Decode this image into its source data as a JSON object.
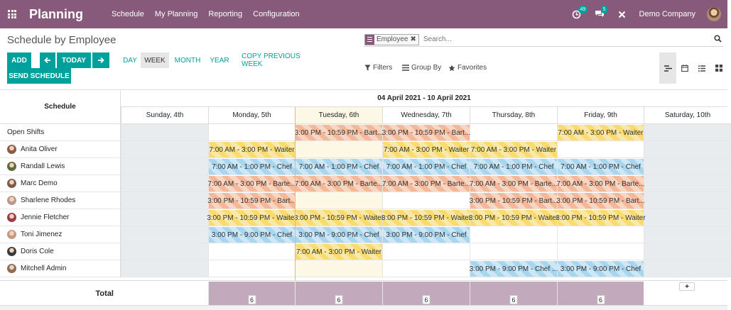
{
  "navbar": {
    "app_title": "Planning",
    "menu": [
      "Schedule",
      "My Planning",
      "Reporting",
      "Configuration"
    ],
    "activity_badge": "49",
    "messages_badge": "5",
    "company": "Demo Company"
  },
  "control_panel": {
    "title": "Schedule by Employee",
    "facet_label": "Employee",
    "search_placeholder": "Search...",
    "buttons": {
      "add": "ADD",
      "today": "TODAY",
      "send": "SEND SCHEDULE"
    },
    "scales": [
      "DAY",
      "WEEK",
      "MONTH",
      "YEAR"
    ],
    "active_scale": "WEEK",
    "copy_previous": "COPY PREVIOUS WEEK",
    "filters": "Filters",
    "group_by": "Group By",
    "favorites": "Favorites"
  },
  "gantt": {
    "header_title": "Schedule",
    "range": "04 April 2021 - 10 April 2021",
    "days": [
      "Sunday, 4th",
      "Monday, 5th",
      "Tuesday, 6th",
      "Wednesday, 7th",
      "Thursday, 8th",
      "Friday, 9th",
      "Saturday, 10th"
    ],
    "rows": [
      {
        "name": "Open Shifts",
        "avatar": "",
        "shifts": [
          {
            "day": 2,
            "span": 1,
            "label": "3:00 PM - 10:59 PM - Bart...",
            "role": "bartender"
          },
          {
            "day": 3,
            "span": 1,
            "label": "3:00 PM - 10:59 PM - Bart...",
            "role": "bartender"
          },
          {
            "day": 5,
            "span": 1,
            "label": "7:00 AM - 3:00 PM - Waiter",
            "role": "waiter"
          }
        ]
      },
      {
        "name": "Anita Oliver",
        "avatar": "#8a5a4a",
        "shifts": [
          {
            "day": 1,
            "span": 1,
            "label": "7:00 AM - 3:00 PM - Waiter",
            "role": "waiter"
          },
          {
            "day": 3,
            "span": 1,
            "label": "7:00 AM - 3:00 PM - Waiter",
            "role": "waiter"
          },
          {
            "day": 4,
            "span": 1,
            "label": "7:00 AM - 3:00 PM - Waiter",
            "role": "waiter"
          }
        ]
      },
      {
        "name": "Randall Lewis",
        "avatar": "#5b6b3c",
        "shifts": [
          {
            "day": 1,
            "span": 1,
            "label": "7:00 AM - 1:00 PM - Chef",
            "role": "chef"
          },
          {
            "day": 2,
            "span": 1,
            "label": "7:00 AM - 1:00 PM - Chef",
            "role": "chef"
          },
          {
            "day": 3,
            "span": 1,
            "label": "7:00 AM - 1:00 PM - Chef",
            "role": "chef"
          },
          {
            "day": 4,
            "span": 1,
            "label": "7:00 AM - 1:00 PM - Chef",
            "role": "chef"
          },
          {
            "day": 5,
            "span": 1,
            "label": "7:00 AM - 1:00 PM - Chef",
            "role": "chef"
          }
        ]
      },
      {
        "name": "Marc Demo",
        "avatar": "#7a5c4d",
        "shifts": [
          {
            "day": 1,
            "span": 1,
            "label": "7:00 AM - 3:00 PM - Barte...",
            "role": "bartender"
          },
          {
            "day": 2,
            "span": 1,
            "label": "7:00 AM - 3:00 PM - Barte...",
            "role": "bartender"
          },
          {
            "day": 3,
            "span": 1,
            "label": "7:00 AM - 3:00 PM - Barte...",
            "role": "bartender"
          },
          {
            "day": 4,
            "span": 1,
            "label": "7:00 AM - 3:00 PM - Barte...",
            "role": "bartender"
          },
          {
            "day": 5,
            "span": 1,
            "label": "7:00 AM - 3:00 PM - Barte...",
            "role": "bartender"
          }
        ]
      },
      {
        "name": "Sharlene Rhodes",
        "avatar": "#b89a8e",
        "shifts": [
          {
            "day": 1,
            "span": 1,
            "label": "3:00 PM - 10:59 PM - Bart...",
            "role": "bartender"
          },
          {
            "day": 4,
            "span": 1,
            "label": "3:00 PM - 10:59 PM - Bart...",
            "role": "bartender"
          },
          {
            "day": 5,
            "span": 1,
            "label": "3:00 PM - 10:59 PM - Bart...",
            "role": "bartender"
          }
        ]
      },
      {
        "name": "Jennie Fletcher",
        "avatar": "#9b3b4a",
        "shifts": [
          {
            "day": 1,
            "span": 1,
            "label": "3:00 PM - 10:59 PM - Waiter",
            "role": "waiter"
          },
          {
            "day": 2,
            "span": 1,
            "label": "3:00 PM - 10:59 PM - Waiter",
            "role": "waiter"
          },
          {
            "day": 3,
            "span": 1,
            "label": "3:00 PM - 10:59 PM - Waiter",
            "role": "waiter"
          },
          {
            "day": 4,
            "span": 1,
            "label": "3:00 PM - 10:59 PM - Waiter",
            "role": "waiter"
          },
          {
            "day": 5,
            "span": 1,
            "label": "3:00 PM - 10:59 PM - Waiter",
            "role": "waiter"
          }
        ]
      },
      {
        "name": "Toni Jimenez",
        "avatar": "#c49a86",
        "shifts": [
          {
            "day": 1,
            "span": 1,
            "label": "3:00 PM - 9:00 PM - Chef",
            "role": "chef"
          },
          {
            "day": 2,
            "span": 1,
            "label": "3:00 PM - 9:00 PM - Chef",
            "role": "chef"
          },
          {
            "day": 3,
            "span": 1,
            "label": "3:00 PM - 9:00 PM - Chef",
            "role": "chef"
          }
        ]
      },
      {
        "name": "Doris Cole",
        "avatar": "#3a3a3a",
        "shifts": [
          {
            "day": 2,
            "span": 1,
            "label": "7:00 AM - 3:00 PM - Waiter",
            "role": "waiter"
          }
        ]
      },
      {
        "name": "Mitchell Admin",
        "avatar": "#8b6e5a",
        "shifts": [
          {
            "day": 4,
            "span": 1,
            "label": "3:00 PM - 9:00 PM - Chef ...",
            "role": "chef"
          },
          {
            "day": 5,
            "span": 1,
            "label": "3:00 PM - 9:00 PM - Chef",
            "role": "chef"
          }
        ]
      }
    ],
    "total_label": "Total",
    "totals": [
      {
        "day": 1,
        "count": "6"
      },
      {
        "day": 2,
        "count": "6"
      },
      {
        "day": 3,
        "count": "6"
      },
      {
        "day": 4,
        "count": "6"
      },
      {
        "day": 5,
        "count": "6"
      }
    ],
    "weekend_days": [
      0,
      6
    ],
    "today_index": 2
  },
  "colors": {
    "brand": "#875a7b",
    "primary": "#00a09d",
    "waiter": "#fbdb70",
    "chef": "#a9d6ef",
    "bartender": "#f4b899"
  }
}
